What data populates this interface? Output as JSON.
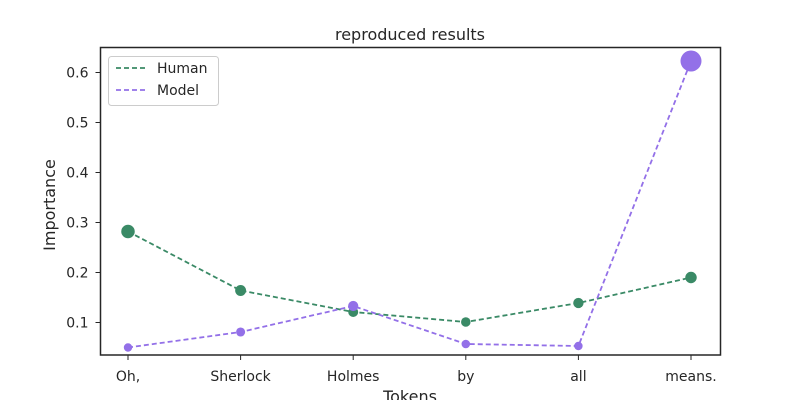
{
  "chart_data": {
    "type": "line",
    "title": "reproduced results",
    "xlabel": "Tokens",
    "ylabel": "Importance",
    "categories": [
      "Oh,",
      "Sherlock",
      "Holmes",
      "by",
      "all",
      "means."
    ],
    "ylim": [
      0.035,
      0.65
    ],
    "yticks": [
      0.1,
      0.2,
      0.3,
      0.4,
      0.5,
      0.6
    ],
    "ytick_labels": [
      "0.1",
      "0.2",
      "0.3",
      "0.4",
      "0.5",
      "0.6"
    ],
    "grid": false,
    "legend": "top-left",
    "series": [
      {
        "name": "Human",
        "color": "#3a8a66",
        "line_style": "dashed",
        "marker_size_scales_with_value": true,
        "values": [
          0.282,
          0.164,
          0.121,
          0.101,
          0.139,
          0.19
        ]
      },
      {
        "name": "Model",
        "color": "#9370e8",
        "line_style": "dashed",
        "marker_size_scales_with_value": true,
        "values": [
          0.05,
          0.081,
          0.133,
          0.057,
          0.053,
          0.623
        ]
      }
    ]
  }
}
